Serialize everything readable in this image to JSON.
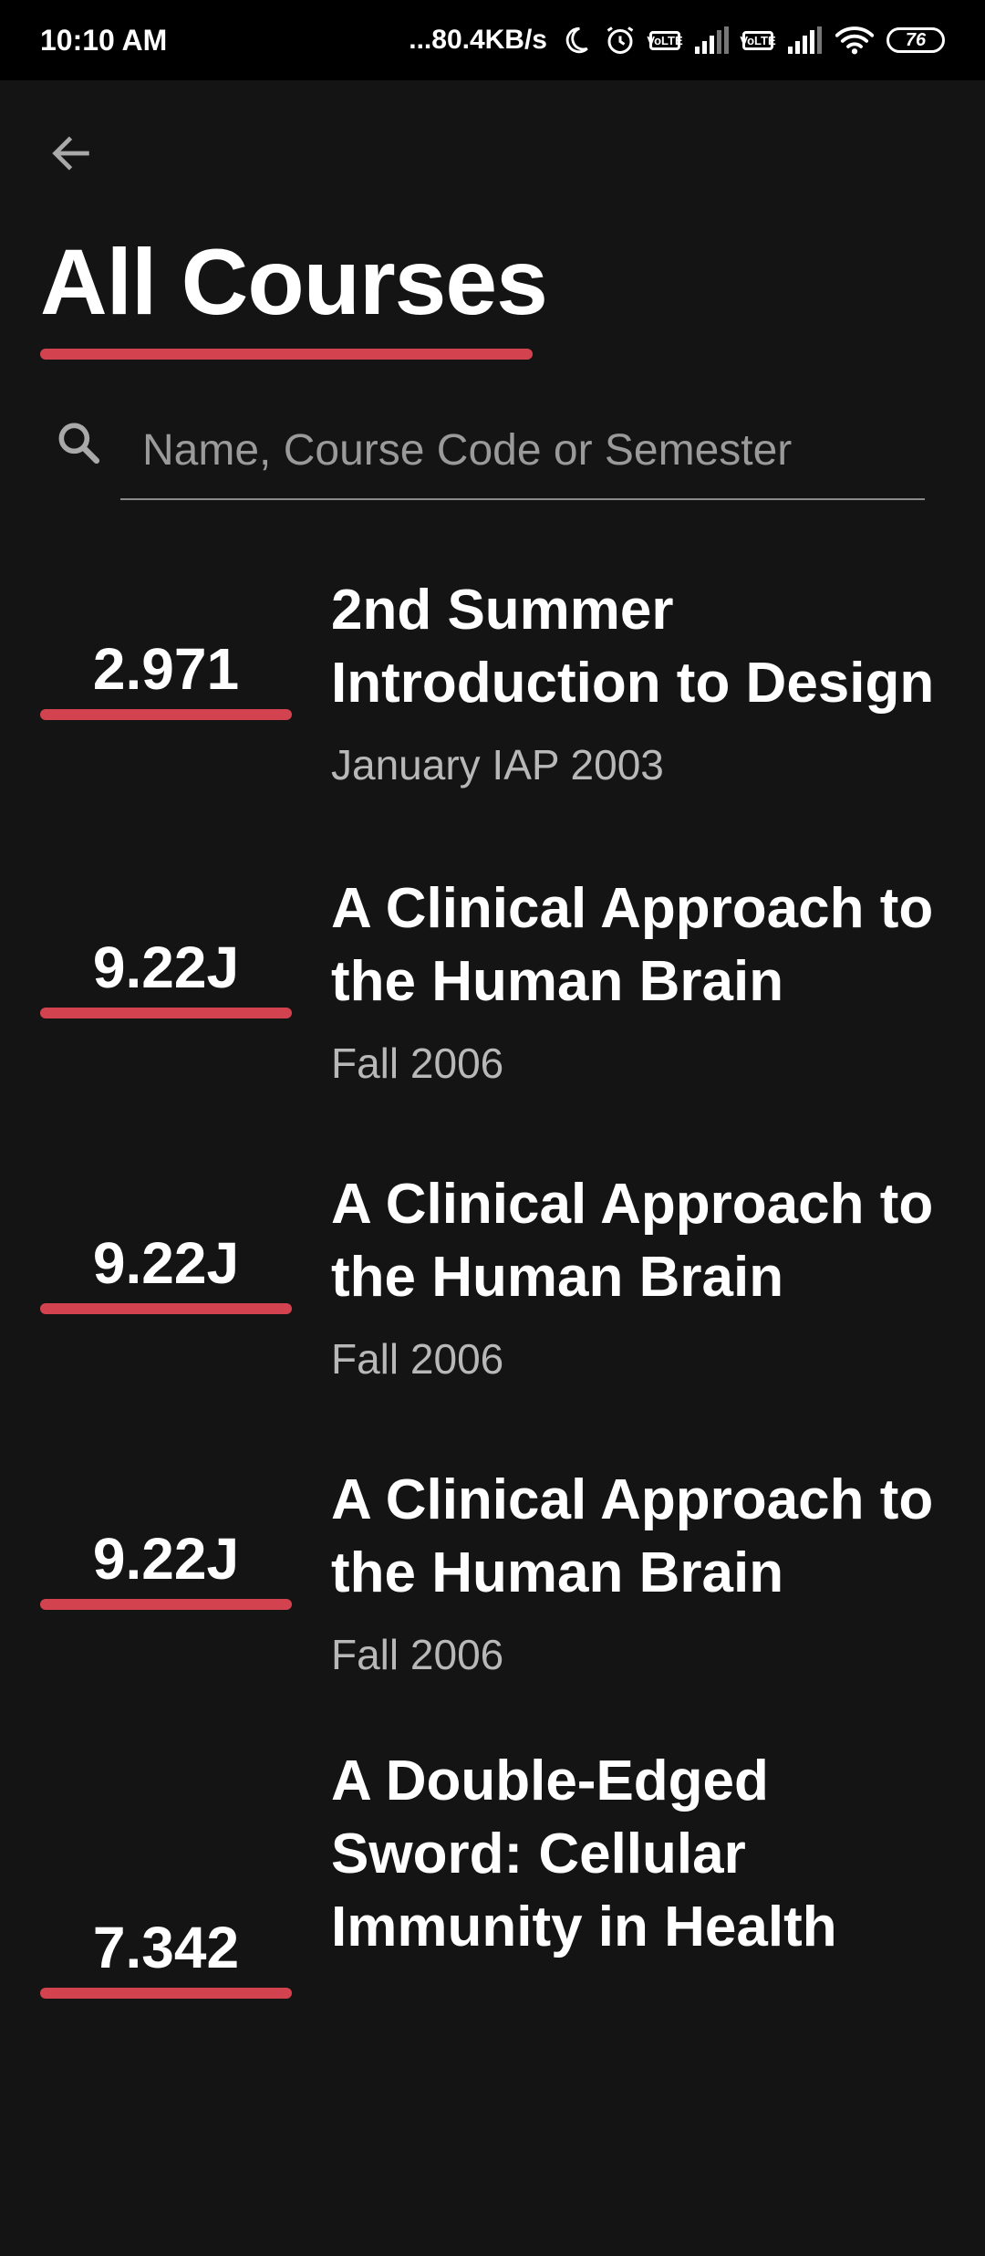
{
  "status_bar": {
    "time": "10:10 AM",
    "network_speed": "...80.4KB/s",
    "lte_label": "Vo LTE",
    "battery": "76"
  },
  "header": {
    "title": "All Courses"
  },
  "search": {
    "placeholder": "Name, Course Code or Semester",
    "value": ""
  },
  "courses": [
    {
      "code": "2.971",
      "name": "2nd Summer Introduction to Design",
      "semester": "January IAP 2003"
    },
    {
      "code": "9.22J",
      "name": "A Clinical Approach to the Human Brain",
      "semester": "Fall 2006"
    },
    {
      "code": "9.22J",
      "name": "A Clinical Approach to the Human Brain",
      "semester": "Fall 2006"
    },
    {
      "code": "9.22J",
      "name": "A Clinical Approach to the Human Brain",
      "semester": "Fall 2006"
    },
    {
      "code": "7.342",
      "name": "A Double-Edged Sword: Cellular Immunity in Health",
      "semester": ""
    }
  ],
  "colors": {
    "background": "#141414",
    "accent": "#d2434f",
    "secondary_text": "#b8b8b8"
  }
}
